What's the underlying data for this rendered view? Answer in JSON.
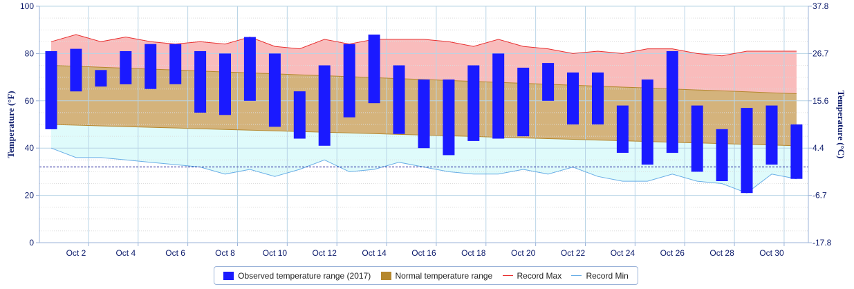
{
  "chart_data": {
    "type": "bar",
    "y_left": {
      "title": "Temperature (°F)",
      "ticks": [
        0,
        20,
        40,
        60,
        80,
        100
      ],
      "min": 0,
      "max": 100
    },
    "y_right": {
      "title": "Temperature (°C)",
      "ticks": [
        "-17.8",
        "-6.7",
        "4.4",
        "15.6",
        "26.7",
        "37.8"
      ]
    },
    "x_tick_labels": [
      "Oct 2",
      "Oct 4",
      "Oct 6",
      "Oct 8",
      "Oct 10",
      "Oct 12",
      "Oct 14",
      "Oct 16",
      "Oct 18",
      "Oct 20",
      "Oct 22",
      "Oct 24",
      "Oct 26",
      "Oct 28",
      "Oct 30"
    ],
    "x_tick_days": [
      2,
      4,
      6,
      8,
      10,
      12,
      14,
      16,
      18,
      20,
      22,
      24,
      26,
      28,
      30
    ],
    "days": [
      1,
      2,
      3,
      4,
      5,
      6,
      7,
      8,
      9,
      10,
      11,
      12,
      13,
      14,
      15,
      16,
      17,
      18,
      19,
      20,
      21,
      22,
      23,
      24,
      25,
      26,
      27,
      28,
      29,
      30,
      31
    ],
    "freezing_line": 32,
    "series": [
      {
        "name": "Observed temperature range (2017)",
        "color": "#1a1aff",
        "low": [
          48,
          64,
          66,
          67,
          65,
          67,
          55,
          54,
          60,
          49,
          44,
          41,
          53,
          59,
          46,
          40,
          37,
          43,
          44,
          45,
          60,
          50,
          50,
          38,
          33,
          38,
          30,
          26,
          21,
          33,
          27
        ],
        "high": [
          81,
          82,
          73,
          81,
          84,
          84,
          81,
          80,
          87,
          80,
          64,
          75,
          84,
          88,
          75,
          69,
          69,
          75,
          80,
          74,
          76,
          72,
          72,
          58,
          69,
          81,
          58,
          48,
          57,
          58,
          50
        ]
      },
      {
        "name": "Normal temperature range",
        "color": "#b5872d",
        "low": [
          50,
          49.7,
          49.4,
          49.1,
          48.8,
          48.5,
          48.2,
          47.9,
          47.6,
          47.3,
          47,
          46.7,
          46.4,
          46.1,
          45.8,
          45.5,
          45.2,
          44.9,
          44.6,
          44.3,
          44,
          43.7,
          43.4,
          43.1,
          42.8,
          42.5,
          42.2,
          41.9,
          41.6,
          41.3,
          41
        ],
        "high": [
          75,
          74.6,
          74.2,
          73.8,
          73.4,
          73,
          72.6,
          72.2,
          71.8,
          71.4,
          71,
          70.6,
          70.2,
          69.8,
          69.4,
          69,
          68.6,
          68.2,
          67.8,
          67.4,
          67,
          66.6,
          66.2,
          65.8,
          65.4,
          65,
          64.6,
          64.2,
          63.8,
          63.4,
          63
        ]
      },
      {
        "name": "Record Max",
        "color": "#e83030",
        "values": [
          85,
          88,
          85,
          87,
          85,
          84,
          85,
          84,
          87,
          83,
          82,
          86,
          84,
          86,
          86,
          86,
          85,
          83,
          86,
          83,
          82,
          80,
          81,
          80,
          82,
          82,
          80,
          79,
          81,
          81,
          81
        ]
      },
      {
        "name": "Record Min",
        "color": "#69aee6",
        "values": [
          40,
          36,
          36,
          35,
          34,
          33,
          32,
          29,
          31,
          28,
          31,
          35,
          30,
          31,
          34,
          32,
          30,
          29,
          29,
          31,
          29,
          32,
          28,
          26,
          26,
          29,
          26,
          25,
          21,
          29,
          27
        ]
      }
    ]
  },
  "legend": {
    "observed": "Observed temperature range (2017)",
    "normal": "Normal temperature range",
    "record_max": "Record Max",
    "record_min": "Record Min"
  },
  "colors": {
    "observed": "#1a1aff",
    "normal_fill": "#d4b37c",
    "normal_line": "#b5872d",
    "max_fill": "#f9bcbc",
    "min_fill": "#dffbfb",
    "record_max": "#e83030",
    "record_min": "#69aee6",
    "freezing": "#00008b",
    "grid": "#b8d4e6",
    "axis_text": "#0b1a6b"
  }
}
